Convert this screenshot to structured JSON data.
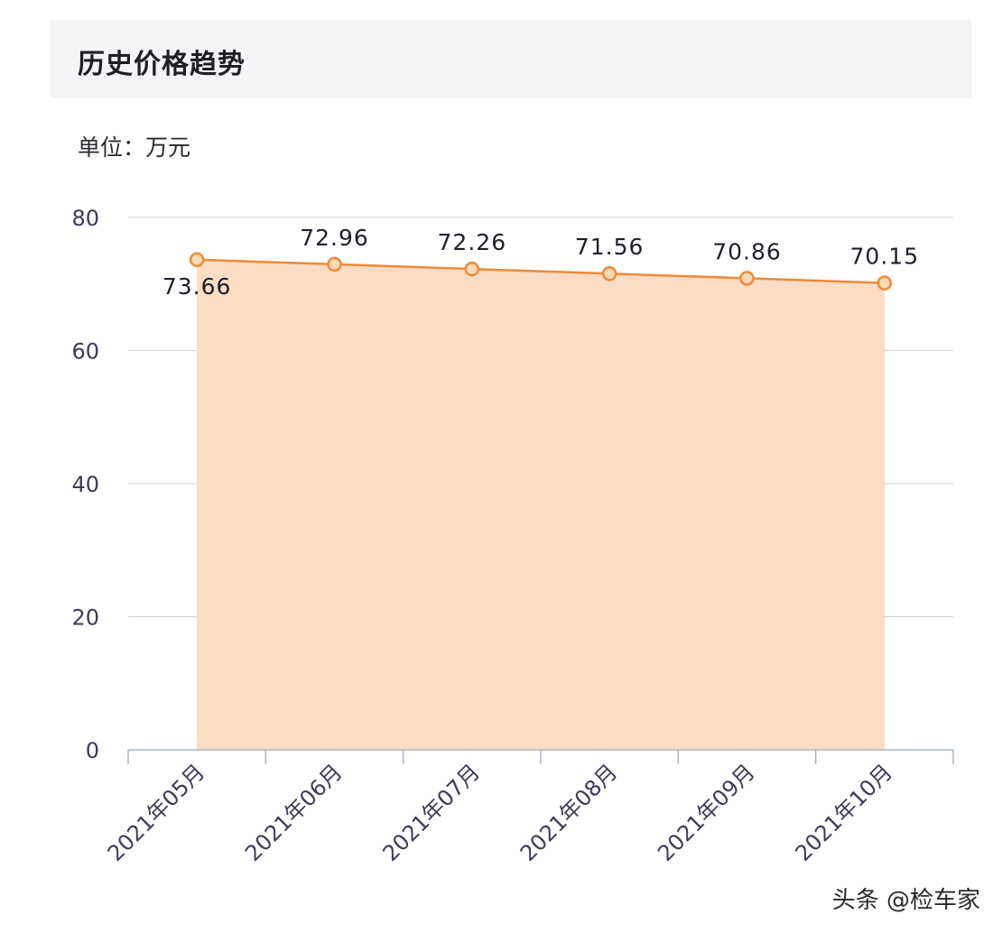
{
  "header": {
    "title": "历史价格趋势"
  },
  "unit_label": "单位：万元",
  "watermark": "头条 @检车家",
  "colors": {
    "line": "#ee8a3a",
    "area": "#fddcc4",
    "marker_fill": "#fbd9b5",
    "grid": "#ccd3de",
    "axis": "#a9b6c8",
    "tick_text": "#3c3c58",
    "label_text": "#1f1f2c"
  },
  "chart_data": {
    "type": "area",
    "categories": [
      "2021年05月",
      "2021年06月",
      "2021年07月",
      "2021年08月",
      "2021年09月",
      "2021年10月"
    ],
    "values": [
      73.66,
      72.96,
      72.26,
      71.56,
      70.86,
      70.15
    ],
    "data_labels": [
      "73.66",
      "72.96",
      "72.26",
      "71.56",
      "70.86",
      "70.15"
    ],
    "ylim": [
      0,
      80
    ],
    "yticks": [
      0,
      20,
      40,
      60,
      80
    ],
    "grid": true,
    "xlabel": "",
    "ylabel": ""
  }
}
